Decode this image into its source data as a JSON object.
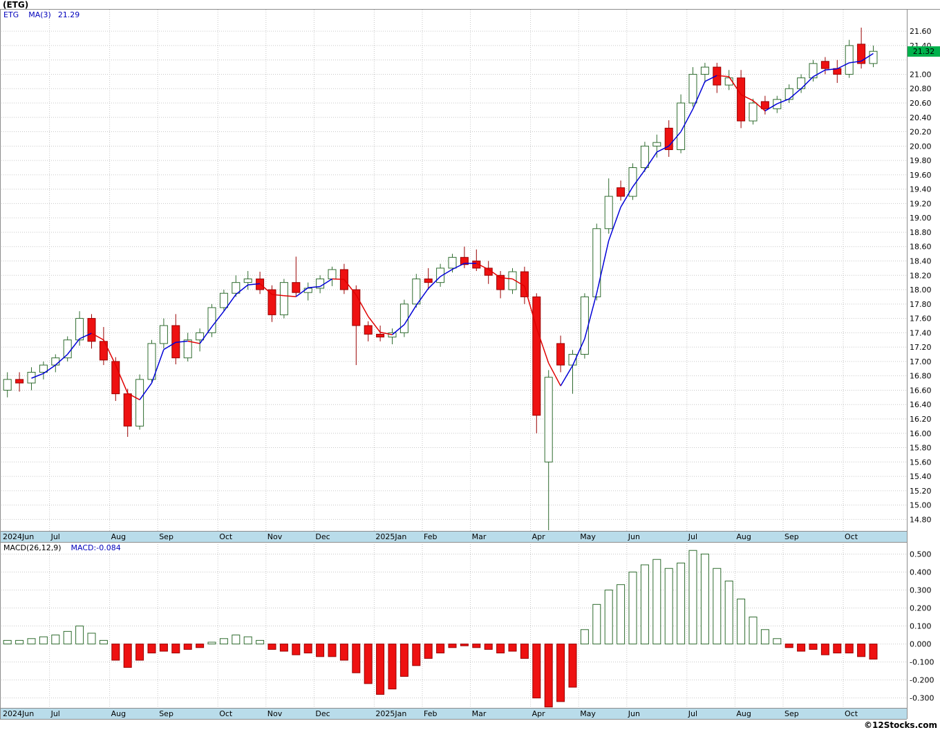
{
  "header": {
    "title": "(ETG)"
  },
  "watermark": "©12Stocks.com",
  "colors": {
    "up_fill": "#FFFFFF",
    "up_stroke": "#2E6B2E",
    "down_fill": "#EE1111",
    "down_stroke": "#990000",
    "ma_up": "#0000D8",
    "ma_down": "#E00000",
    "grid": "#C6C6C6",
    "axis_strip": "#B9DCEA",
    "badge_bg": "#00B14C",
    "legend_blue": "#0000BB",
    "border": "#8C8C8C"
  },
  "chart_data": [
    {
      "type": "candlestick",
      "panel": "price",
      "legend": {
        "symbol": "ETG",
        "ma_label": "MA(3)",
        "ma_value": "21.29"
      },
      "last_price_badge": "21.32",
      "overlay": {
        "name": "MA(3)",
        "period": 3
      },
      "grid": true,
      "legend_position": "top-left",
      "y_axis": {
        "min": 14.64,
        "max": 21.9,
        "ticks": [
          "21.60",
          "21.40",
          "21.00",
          "20.80",
          "20.60",
          "20.40",
          "20.20",
          "20.00",
          "19.80",
          "19.60",
          "19.40",
          "19.20",
          "19.00",
          "18.80",
          "18.60",
          "18.40",
          "18.20",
          "18.00",
          "17.80",
          "17.60",
          "17.40",
          "17.20",
          "17.00",
          "16.80",
          "16.60",
          "16.40",
          "16.20",
          "16.00",
          "15.80",
          "15.60",
          "15.40",
          "15.20",
          "15.00",
          "14.80"
        ],
        "gridline_start": 14.8,
        "gridline_end": 21.6,
        "gridline_step": 0.2
      },
      "x_axis": {
        "months": [
          {
            "label": "2024Jun",
            "weeks": 4
          },
          {
            "label": "Jul",
            "weeks": 5
          },
          {
            "label": "Aug",
            "weeks": 4
          },
          {
            "label": "Sep",
            "weeks": 5
          },
          {
            "label": "Oct",
            "weeks": 4
          },
          {
            "label": "Nov",
            "weeks": 4
          },
          {
            "label": "Dec",
            "weeks": 5
          },
          {
            "label": "2025Jan",
            "weeks": 4
          },
          {
            "label": "Feb",
            "weeks": 4
          },
          {
            "label": "Mar",
            "weeks": 5
          },
          {
            "label": "Apr",
            "weeks": 4
          },
          {
            "label": "May",
            "weeks": 4
          },
          {
            "label": "Jun",
            "weeks": 5
          },
          {
            "label": "Jul",
            "weeks": 4
          },
          {
            "label": "Aug",
            "weeks": 4
          },
          {
            "label": "Sep",
            "weeks": 5
          },
          {
            "label": "Oct",
            "weeks": 3
          }
        ]
      },
      "candles_format": [
        "open",
        "high",
        "low",
        "close"
      ],
      "candles": [
        [
          16.6,
          16.85,
          16.5,
          16.75
        ],
        [
          16.75,
          16.85,
          16.58,
          16.7
        ],
        [
          16.7,
          16.92,
          16.6,
          16.85
        ],
        [
          16.85,
          17.0,
          16.75,
          16.95
        ],
        [
          16.95,
          17.1,
          16.85,
          17.05
        ],
        [
          17.05,
          17.35,
          17.0,
          17.3
        ],
        [
          17.3,
          17.7,
          17.22,
          17.6
        ],
        [
          17.6,
          17.66,
          17.18,
          17.28
        ],
        [
          17.28,
          17.48,
          16.95,
          17.02
        ],
        [
          17.0,
          17.06,
          16.45,
          16.55
        ],
        [
          16.55,
          16.62,
          15.95,
          16.1
        ],
        [
          16.1,
          16.82,
          16.05,
          16.75
        ],
        [
          16.75,
          17.3,
          16.7,
          17.25
        ],
        [
          17.25,
          17.6,
          17.18,
          17.5
        ],
        [
          17.5,
          17.66,
          16.96,
          17.05
        ],
        [
          17.05,
          17.4,
          17.0,
          17.3
        ],
        [
          17.3,
          17.46,
          17.14,
          17.4
        ],
        [
          17.4,
          17.8,
          17.34,
          17.75
        ],
        [
          17.75,
          18.0,
          17.7,
          17.95
        ],
        [
          17.95,
          18.2,
          17.9,
          18.1
        ],
        [
          18.1,
          18.26,
          18.0,
          18.15
        ],
        [
          18.15,
          18.25,
          17.94,
          18.0
        ],
        [
          18.0,
          18.06,
          17.55,
          17.65
        ],
        [
          17.65,
          18.15,
          17.6,
          18.1
        ],
        [
          18.1,
          18.46,
          17.9,
          17.96
        ],
        [
          17.96,
          18.1,
          17.85,
          18.02
        ],
        [
          18.02,
          18.2,
          17.95,
          18.15
        ],
        [
          18.15,
          18.32,
          18.05,
          18.28
        ],
        [
          18.28,
          18.36,
          17.94,
          18.0
        ],
        [
          18.0,
          18.06,
          16.95,
          17.5
        ],
        [
          17.5,
          17.56,
          17.28,
          17.38
        ],
        [
          17.38,
          17.5,
          17.28,
          17.34
        ],
        [
          17.34,
          17.46,
          17.24,
          17.4
        ],
        [
          17.4,
          17.86,
          17.34,
          17.8
        ],
        [
          17.8,
          18.22,
          17.75,
          18.15
        ],
        [
          18.15,
          18.3,
          18.0,
          18.1
        ],
        [
          18.1,
          18.36,
          18.04,
          18.3
        ],
        [
          18.3,
          18.5,
          18.24,
          18.45
        ],
        [
          18.45,
          18.6,
          18.3,
          18.35
        ],
        [
          18.4,
          18.56,
          18.26,
          18.3
        ],
        [
          18.3,
          18.4,
          18.08,
          18.2
        ],
        [
          18.2,
          18.26,
          17.88,
          18.0
        ],
        [
          18.0,
          18.3,
          17.94,
          18.25
        ],
        [
          18.25,
          18.32,
          17.8,
          17.9
        ],
        [
          17.9,
          17.95,
          16.0,
          16.25
        ],
        [
          15.6,
          16.88,
          14.65,
          16.78
        ],
        [
          17.25,
          17.36,
          16.85,
          16.95
        ],
        [
          16.95,
          17.16,
          16.55,
          17.1
        ],
        [
          17.1,
          17.95,
          17.04,
          17.9
        ],
        [
          17.9,
          18.92,
          17.85,
          18.85
        ],
        [
          18.85,
          19.55,
          18.78,
          19.3
        ],
        [
          19.42,
          19.52,
          19.24,
          19.3
        ],
        [
          19.3,
          19.76,
          19.25,
          19.7
        ],
        [
          19.7,
          20.06,
          19.64,
          20.0
        ],
        [
          20.0,
          20.16,
          19.84,
          20.05
        ],
        [
          20.25,
          20.36,
          19.85,
          19.95
        ],
        [
          19.95,
          20.72,
          19.9,
          20.6
        ],
        [
          20.6,
          21.1,
          20.55,
          21.0
        ],
        [
          21.0,
          21.16,
          20.88,
          21.1
        ],
        [
          21.1,
          21.16,
          20.74,
          20.85
        ],
        [
          20.85,
          21.06,
          20.78,
          20.95
        ],
        [
          20.95,
          21.06,
          20.25,
          20.35
        ],
        [
          20.35,
          20.66,
          20.3,
          20.6
        ],
        [
          20.62,
          20.7,
          20.44,
          20.52
        ],
        [
          20.52,
          20.7,
          20.46,
          20.65
        ],
        [
          20.65,
          20.86,
          20.6,
          20.8
        ],
        [
          20.8,
          21.0,
          20.74,
          20.95
        ],
        [
          20.95,
          21.2,
          20.9,
          21.15
        ],
        [
          21.18,
          21.24,
          21.0,
          21.08
        ],
        [
          21.08,
          21.2,
          20.88,
          21.0
        ],
        [
          21.0,
          21.48,
          20.95,
          21.4
        ],
        [
          21.42,
          21.65,
          21.08,
          21.15
        ],
        [
          21.15,
          21.4,
          21.1,
          21.32
        ]
      ]
    },
    {
      "type": "bar",
      "panel": "macd",
      "legend": {
        "label": "MACD(26,12,9)",
        "value_label": "MACD:-0.084"
      },
      "grid": true,
      "y_axis": {
        "min": -0.355,
        "max": 0.567,
        "ticks": [
          "0.500",
          "0.400",
          "0.300",
          "0.200",
          "0.100",
          "0.000",
          "-0.100",
          "-0.200",
          "-0.300"
        ]
      },
      "values": [
        0.02,
        0.02,
        0.03,
        0.04,
        0.05,
        0.07,
        0.1,
        0.06,
        0.02,
        -0.09,
        -0.13,
        -0.09,
        -0.05,
        -0.04,
        -0.05,
        -0.03,
        -0.02,
        0.01,
        0.03,
        0.05,
        0.04,
        0.02,
        -0.03,
        -0.04,
        -0.06,
        -0.05,
        -0.07,
        -0.07,
        -0.09,
        -0.16,
        -0.22,
        -0.28,
        -0.25,
        -0.18,
        -0.12,
        -0.08,
        -0.05,
        -0.02,
        -0.01,
        -0.02,
        -0.03,
        -0.05,
        -0.04,
        -0.08,
        -0.3,
        -0.35,
        -0.32,
        -0.24,
        0.08,
        0.22,
        0.3,
        0.33,
        0.4,
        0.44,
        0.47,
        0.42,
        0.45,
        0.52,
        0.5,
        0.42,
        0.35,
        0.25,
        0.15,
        0.08,
        0.03,
        -0.02,
        -0.04,
        -0.03,
        -0.06,
        -0.05,
        -0.05,
        -0.07,
        -0.084
      ]
    }
  ]
}
